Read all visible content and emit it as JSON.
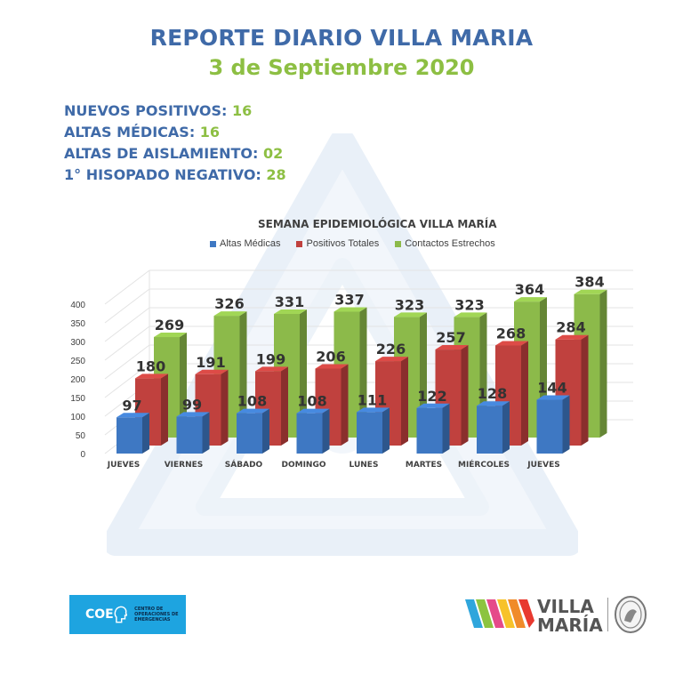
{
  "header": {
    "title": "REPORTE DIARIO VILLA MARIA",
    "date": "3 de Septiembre 2020"
  },
  "stats": [
    {
      "label": "NUEVOS POSITIVOS: ",
      "value": "16"
    },
    {
      "label": "ALTAS MÉDICAS: ",
      "value": "16"
    },
    {
      "label": "ALTAS DE AISLAMIENTO: ",
      "value": "02"
    },
    {
      "label": "1° HISOPADO NEGATIVO: ",
      "value": "28"
    }
  ],
  "chart_data": {
    "type": "bar",
    "title": "SEMANA EPIDEMIOLÓGICA VILLA MARÍA",
    "categories": [
      "JUEVES",
      "VIERNES",
      "SÁBADO",
      "DOMINGO",
      "LUNES",
      "MARTES",
      "MIÉRCOLES",
      "JUEVES"
    ],
    "series": [
      {
        "name": "Altas Médicas",
        "color": "#3e78c3",
        "values": [
          97,
          99,
          108,
          108,
          111,
          122,
          128,
          144
        ]
      },
      {
        "name": "Positivos Totales",
        "color": "#c0413e",
        "values": [
          180,
          191,
          199,
          206,
          226,
          257,
          268,
          284
        ]
      },
      {
        "name": "Contactos Estrechos",
        "color": "#8cba4a",
        "values": [
          269,
          326,
          331,
          337,
          323,
          323,
          364,
          384
        ]
      }
    ],
    "yticks": [
      0,
      50,
      100,
      150,
      200,
      250,
      300,
      350,
      400
    ],
    "ylim": [
      0,
      400
    ],
    "grid": true,
    "legend": "top"
  },
  "footer": {
    "coe_label": "COE",
    "coe_sub": "CENTRO DE OPERACIONES DE EMERGENCIAS",
    "city_line1": "VILLA",
    "city_line2": "MARÍA"
  }
}
